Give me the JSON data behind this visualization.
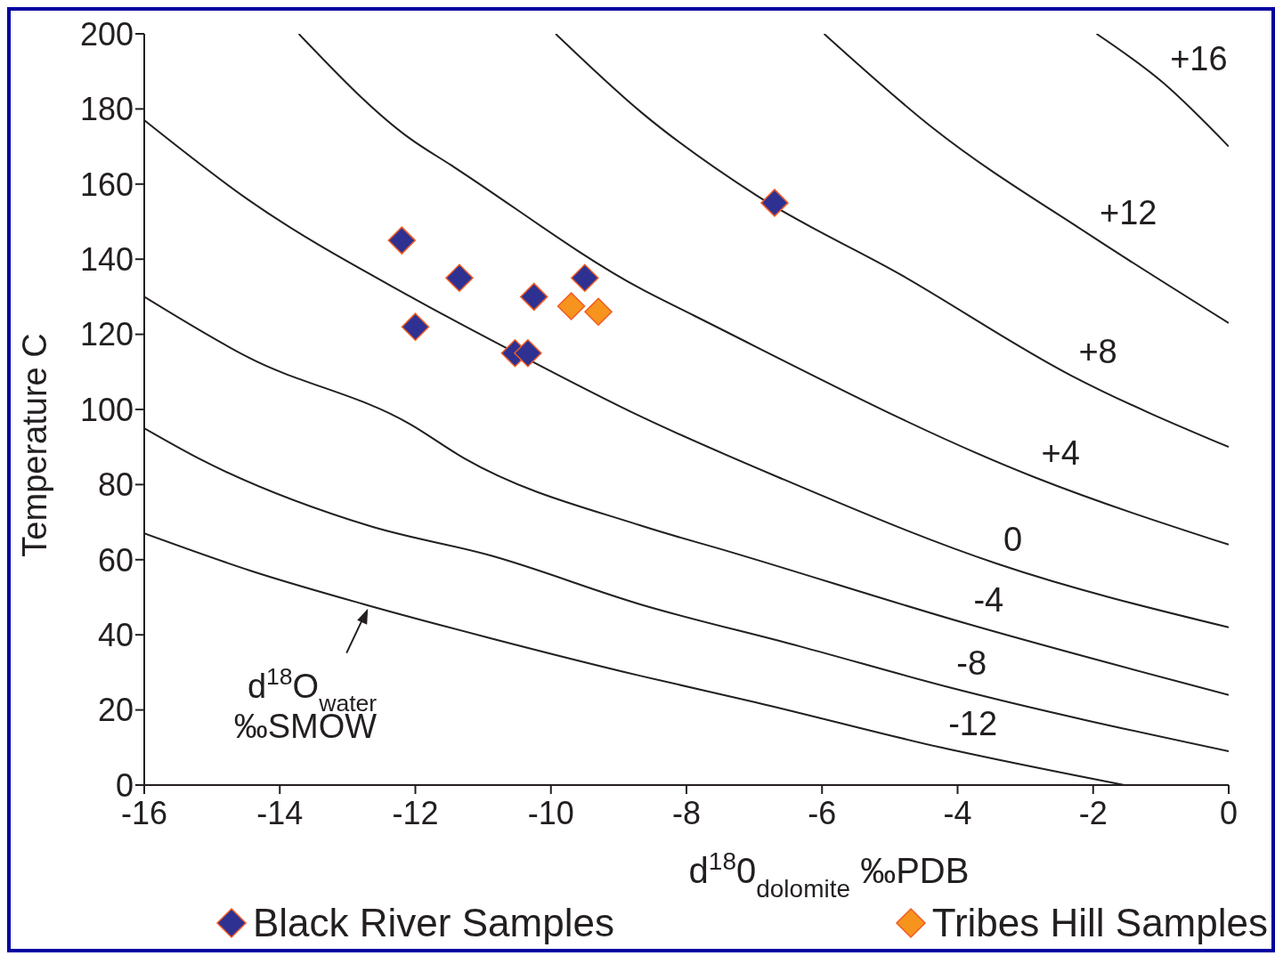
{
  "chart_data": {
    "type": "scatter",
    "xlabel": "d$^{18}$0$_{dolomite}$ ‰PDB",
    "ylabel": "Temperature  C",
    "xlim": [
      -16,
      0
    ],
    "xticks": [
      -16,
      -14,
      -12,
      -10,
      -8,
      -6,
      -4,
      -2,
      0
    ],
    "ylim": [
      0,
      200
    ],
    "yticks": [
      0,
      20,
      40,
      60,
      80,
      100,
      120,
      140,
      160,
      180,
      200
    ],
    "legend": "bottom",
    "grid": false,
    "annotations": [
      {
        "text": "d$^{18}$O$_{water}$ ‰SMOW",
        "x": -12.7,
        "y": 47
      }
    ],
    "series": [
      {
        "name": "Black River Samples",
        "marker": "diamond",
        "color": "#2e3192",
        "x": [
          -12.2,
          -11.35,
          -12.0,
          -10.25,
          -9.5,
          -10.53,
          -10.34,
          -6.7
        ],
        "values": [
          145,
          135,
          122,
          130,
          135,
          115,
          115,
          155
        ]
      },
      {
        "name": "Tribes Hill Samples",
        "marker": "diamond",
        "color": "#f7941d",
        "x": [
          -9.7,
          -9.3
        ],
        "values": [
          127.5,
          126
        ]
      },
      {
        "name": "-12",
        "type": "line",
        "color": "#231f20",
        "x": [
          -16,
          -14.42,
          -12.73,
          -10.87,
          -8.66,
          -6.97,
          -4.24,
          -1.54
        ],
        "values": [
          67,
          57,
          48,
          39,
          29,
          22,
          10,
          0
        ]
      },
      {
        "name": "-8",
        "type": "line",
        "color": "#231f20",
        "x": [
          -16,
          -15.2,
          -12.68,
          -10.87,
          -8.66,
          -6.34,
          -4.12,
          0
        ],
        "values": [
          95,
          87,
          69,
          61,
          48,
          37,
          26,
          9
        ]
      },
      {
        "name": "-4",
        "type": "line",
        "color": "#231f20",
        "x": [
          -16,
          -14.48,
          -12.07,
          -11.28,
          -8.66,
          -7.34,
          -3.87,
          0
        ],
        "values": [
          130,
          114,
          96,
          87,
          69,
          62,
          43,
          24
        ]
      },
      {
        "name": "0",
        "type": "line",
        "color": "#231f20",
        "x": [
          -16,
          -14.48,
          -12.07,
          -10.62,
          -8.66,
          -6.65,
          -3.43,
          0
        ],
        "values": [
          177,
          156,
          130,
          116,
          98,
          82,
          59,
          42
        ]
      },
      {
        "name": "+4",
        "type": "line",
        "color": "#231f20",
        "x": [
          -13.72,
          -12.07,
          -11.47,
          -8.66,
          -7.89,
          -2.87,
          0
        ],
        "values": [
          200,
          172,
          165,
          132,
          125,
          82,
          64
        ]
      },
      {
        "name": "+8",
        "type": "line",
        "color": "#231f20",
        "x": [
          -9.93,
          -8.66,
          -6.97,
          -4.85,
          -2.32,
          0
        ],
        "values": [
          200,
          179,
          157,
          136,
          109,
          90
        ]
      },
      {
        "name": "+12",
        "type": "line",
        "color": "#231f20",
        "x": [
          -5.97,
          -4.37,
          -2.01,
          0
        ],
        "values": [
          200,
          175,
          146,
          123
        ]
      },
      {
        "name": "+16",
        "type": "line",
        "color": "#231f20",
        "x": [
          -1.95,
          -0.97,
          0
        ],
        "values": [
          200,
          187,
          170
        ]
      }
    ]
  }
}
